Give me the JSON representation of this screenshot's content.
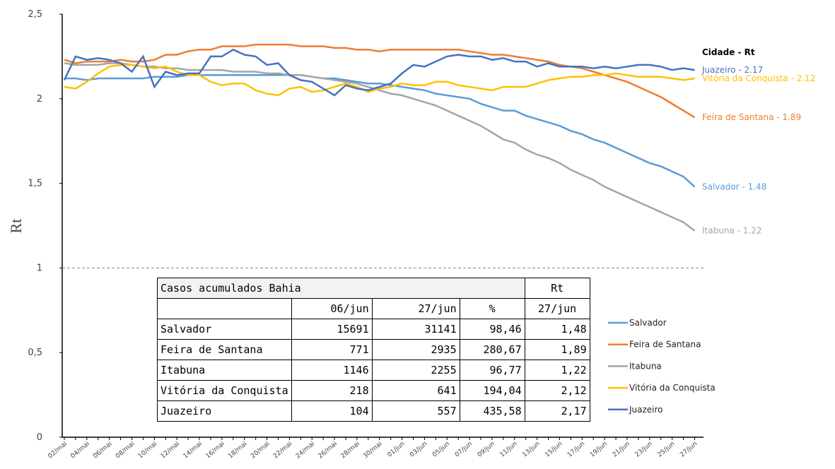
{
  "chart_data": {
    "type": "line",
    "ylabel": "Rt",
    "categories": [
      "02/mai",
      null,
      "04/mai",
      null,
      "06/mai",
      null,
      "08/mai",
      null,
      "10/mai",
      null,
      "12/mai",
      null,
      "14/mai",
      null,
      "16/mai",
      null,
      "18/mai",
      null,
      "20/mai",
      null,
      "22/mai",
      null,
      "24/mai",
      null,
      "26/mai",
      null,
      "28/mai",
      null,
      "30/mai",
      null,
      "01/jun",
      null,
      "03/jun",
      null,
      "05/jun",
      null,
      "07/jun",
      null,
      "09/jun",
      null,
      "11/jun",
      null,
      "13/jun",
      null,
      "15/jun",
      null,
      "17/jun",
      null,
      "19/jun",
      null,
      "21/jun",
      null,
      "23/jun",
      null,
      "25/jun",
      null,
      "27/jun"
    ],
    "ylim": [
      0,
      2.5
    ],
    "yticks": [
      0,
      {
        "value": 0.5,
        "label": "0,5"
      },
      1,
      {
        "value": 1.5,
        "label": "1,5"
      },
      2,
      {
        "value": 2.5,
        "label": "2,5"
      }
    ],
    "hline": 1,
    "legend": "lower right",
    "end_labels_title": "Cidade - Rt",
    "series": [
      {
        "name": "Salvador",
        "color": "#5b9bd5",
        "end_label": "Salvador - 1.48",
        "values": [
          2.12,
          2.12,
          2.11,
          2.12,
          2.12,
          2.12,
          2.12,
          2.12,
          2.13,
          2.13,
          2.13,
          2.14,
          2.14,
          2.14,
          2.14,
          2.14,
          2.14,
          2.14,
          2.14,
          2.14,
          2.14,
          2.14,
          2.13,
          2.12,
          2.12,
          2.11,
          2.1,
          2.09,
          2.09,
          2.08,
          2.07,
          2.06,
          2.05,
          2.03,
          2.02,
          2.01,
          2.0,
          1.97,
          1.95,
          1.93,
          1.93,
          1.9,
          1.88,
          1.86,
          1.84,
          1.81,
          1.79,
          1.76,
          1.74,
          1.71,
          1.68,
          1.65,
          1.62,
          1.6,
          1.57,
          1.54,
          1.48
        ]
      },
      {
        "name": "Feira de Santana",
        "color": "#ed7d31",
        "end_label": "Feira de Santana - 1.89",
        "values": [
          2.23,
          2.21,
          2.22,
          2.22,
          2.22,
          2.23,
          2.22,
          2.22,
          2.23,
          2.26,
          2.26,
          2.28,
          2.29,
          2.29,
          2.31,
          2.31,
          2.31,
          2.32,
          2.32,
          2.32,
          2.32,
          2.31,
          2.31,
          2.31,
          2.3,
          2.3,
          2.29,
          2.29,
          2.28,
          2.29,
          2.29,
          2.29,
          2.29,
          2.29,
          2.29,
          2.29,
          2.28,
          2.27,
          2.26,
          2.26,
          2.25,
          2.24,
          2.23,
          2.22,
          2.2,
          2.19,
          2.18,
          2.16,
          2.14,
          2.12,
          2.1,
          2.07,
          2.04,
          2.01,
          1.97,
          1.93,
          1.89
        ]
      },
      {
        "name": "Itabuna",
        "color": "#a5a5a5",
        "end_label": "Itabuna - 1.22",
        "values": [
          2.21,
          2.2,
          2.2,
          2.2,
          2.21,
          2.21,
          2.2,
          2.19,
          2.19,
          2.18,
          2.18,
          2.17,
          2.17,
          2.17,
          2.17,
          2.16,
          2.16,
          2.16,
          2.15,
          2.15,
          2.14,
          2.14,
          2.13,
          2.12,
          2.11,
          2.1,
          2.09,
          2.07,
          2.05,
          2.03,
          2.02,
          2.0,
          1.98,
          1.96,
          1.93,
          1.9,
          1.87,
          1.84,
          1.8,
          1.76,
          1.74,
          1.7,
          1.67,
          1.65,
          1.62,
          1.58,
          1.55,
          1.52,
          1.48,
          1.45,
          1.42,
          1.39,
          1.36,
          1.33,
          1.3,
          1.27,
          1.22
        ]
      },
      {
        "name": "Vitória da Conquista",
        "color": "#ffc000",
        "end_label": "Vitória da Conquista - 2.12",
        "values": [
          2.07,
          2.06,
          2.1,
          2.15,
          2.19,
          2.2,
          2.2,
          2.19,
          2.18,
          2.19,
          2.16,
          2.14,
          2.14,
          2.1,
          2.08,
          2.09,
          2.09,
          2.05,
          2.03,
          2.02,
          2.06,
          2.07,
          2.04,
          2.05,
          2.07,
          2.09,
          2.07,
          2.04,
          2.06,
          2.07,
          2.09,
          2.08,
          2.08,
          2.1,
          2.1,
          2.08,
          2.07,
          2.06,
          2.05,
          2.07,
          2.07,
          2.07,
          2.09,
          2.11,
          2.12,
          2.13,
          2.13,
          2.14,
          2.14,
          2.15,
          2.14,
          2.13,
          2.13,
          2.13,
          2.12,
          2.11,
          2.12
        ]
      },
      {
        "name": "Juazeiro",
        "color": "#4472c4",
        "end_label": "Juazeiro - 2.17",
        "values": [
          2.11,
          2.25,
          2.23,
          2.24,
          2.23,
          2.21,
          2.16,
          2.25,
          2.07,
          2.16,
          2.14,
          2.15,
          2.15,
          2.25,
          2.25,
          2.29,
          2.26,
          2.25,
          2.2,
          2.21,
          2.14,
          2.11,
          2.1,
          2.06,
          2.02,
          2.08,
          2.06,
          2.05,
          2.07,
          2.09,
          2.15,
          2.2,
          2.19,
          2.22,
          2.25,
          2.26,
          2.25,
          2.25,
          2.23,
          2.24,
          2.22,
          2.22,
          2.19,
          2.21,
          2.19,
          2.19,
          2.19,
          2.18,
          2.19,
          2.18,
          2.19,
          2.2,
          2.2,
          2.19,
          2.17,
          2.18,
          2.17
        ]
      }
    ]
  },
  "table": {
    "title": "Casos acumulados Bahia",
    "rt_header": "Rt",
    "columns": [
      "06/jun",
      "27/jun",
      "%",
      "27/jun"
    ],
    "rows": [
      [
        "Salvador",
        "15691",
        "31141",
        "98,46",
        "1,48"
      ],
      [
        "Feira de Santana",
        "771",
        "2935",
        "280,67",
        "1,89"
      ],
      [
        "Itabuna",
        "1146",
        "2255",
        "96,77",
        "1,22"
      ],
      [
        "Vitória da Conquista",
        "218",
        "641",
        "194,04",
        "2,12"
      ],
      [
        "Juazeiro",
        "104",
        "557",
        "435,58",
        "2,17"
      ]
    ]
  }
}
